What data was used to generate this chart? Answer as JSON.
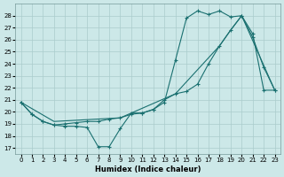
{
  "xlabel": "Humidex (Indice chaleur)",
  "bg_color": "#cce8e8",
  "grid_color": "#aacccc",
  "line_color": "#1a7070",
  "xlim": [
    -0.5,
    23.5
  ],
  "ylim": [
    16.5,
    29.0
  ],
  "yticks": [
    17,
    18,
    19,
    20,
    21,
    22,
    23,
    24,
    25,
    26,
    27,
    28
  ],
  "xticks": [
    0,
    1,
    2,
    3,
    4,
    5,
    6,
    7,
    8,
    9,
    10,
    11,
    12,
    13,
    14,
    15,
    16,
    17,
    18,
    19,
    20,
    21,
    22,
    23
  ],
  "line1_x": [
    0,
    1,
    2,
    3,
    4,
    5,
    6,
    7,
    8,
    9,
    10,
    11,
    12,
    13,
    14,
    15,
    16,
    17,
    18,
    19,
    20,
    21,
    22,
    23
  ],
  "line1_y": [
    20.8,
    19.8,
    19.2,
    18.9,
    18.8,
    18.8,
    18.7,
    17.1,
    17.1,
    18.6,
    19.9,
    19.9,
    20.2,
    20.8,
    24.3,
    27.8,
    28.4,
    28.1,
    28.4,
    27.9,
    28.0,
    26.2,
    23.7,
    21.8
  ],
  "line2_x": [
    0,
    1,
    2,
    3,
    4,
    5,
    6,
    7,
    8,
    9,
    10,
    11,
    12,
    13,
    14,
    15,
    16,
    17,
    18,
    19,
    20,
    21,
    22,
    23
  ],
  "line2_y": [
    20.8,
    19.8,
    19.2,
    18.9,
    19.0,
    19.1,
    19.2,
    19.2,
    19.4,
    19.5,
    19.8,
    19.9,
    20.2,
    21.0,
    21.5,
    21.7,
    22.3,
    24.0,
    25.5,
    26.8,
    28.0,
    26.5,
    21.8,
    21.8
  ],
  "line3_x": [
    0,
    3,
    9,
    10,
    14,
    18,
    19,
    20,
    23
  ],
  "line3_y": [
    20.8,
    19.2,
    19.5,
    19.9,
    21.5,
    25.5,
    26.8,
    28.0,
    21.8
  ]
}
